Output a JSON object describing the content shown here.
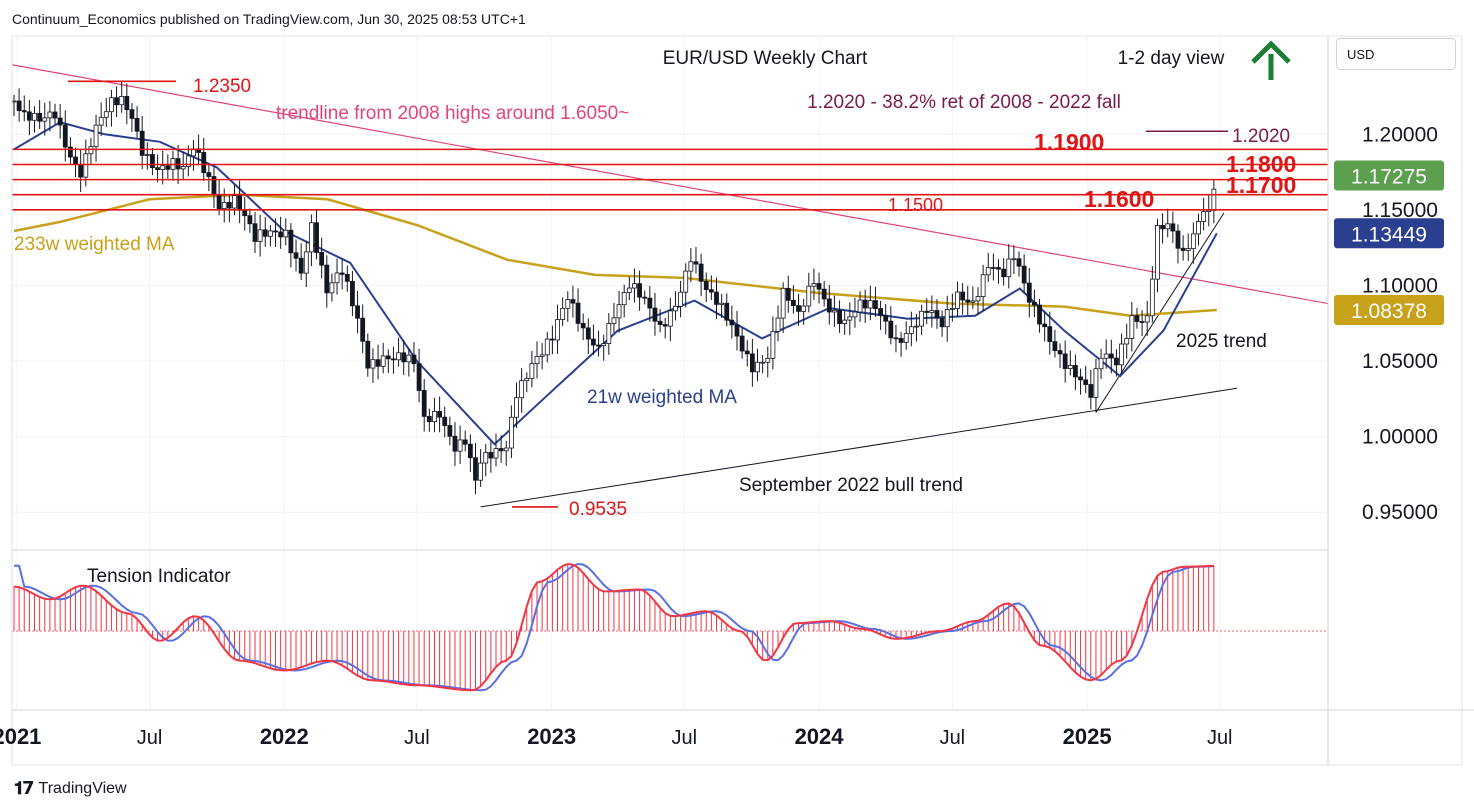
{
  "header": {
    "source": "Continuum_Economics published on TradingView.com, Jun 30, 2025 08:53 UTC+1"
  },
  "branding": {
    "name": "TradingView"
  },
  "currency_button": "USD",
  "colors": {
    "up": "#ffffff",
    "down": "#131722",
    "level": "#e01414",
    "trendline_2008": "#e0457b",
    "ma21": "#2a3f8f",
    "ma233": "#c8a11a",
    "tension_fill": "#f23645",
    "tension_line": "#5b6fe0",
    "current_price": "#5b9f4f",
    "arrow": "#1e7d32"
  },
  "chart_data": {
    "type": "candlestick",
    "title": "EUR/USD Weekly Chart",
    "view": "1-2 day view",
    "view_icon": "up-arrow-icon",
    "y_ticks": [
      0.95,
      1.0,
      1.05,
      1.1,
      1.15,
      1.2
    ],
    "y_tick_labels": [
      "0.95000",
      "1.00000",
      "1.05000",
      "1.10000",
      "1.15000",
      "1.20000"
    ],
    "ylim": [
      0.925,
      1.265
    ],
    "x_ticks": [
      "2021-01-01",
      "2021-07-01",
      "2022-01-01",
      "2022-07-01",
      "2023-01-01",
      "2023-07-01",
      "2024-01-01",
      "2024-07-01",
      "2025-01-01",
      "2025-07-01"
    ],
    "x_tick_labels": [
      "2021",
      "Jul",
      "2022",
      "Jul",
      "2023",
      "Jul",
      "2024",
      "Jul",
      "2025",
      "Jul"
    ],
    "price_badges": [
      {
        "value": 1.17275,
        "label": "1.17275",
        "color": "#5b9f4f"
      },
      {
        "value": 1.13449,
        "label": "1.13449",
        "color": "#2a3f8f"
      },
      {
        "value": 1.08378,
        "label": "1.08378",
        "color": "#c8a11a"
      }
    ],
    "levels": [
      {
        "value": 1.19,
        "label": "1.1900"
      },
      {
        "value": 1.18,
        "label": "1.1800"
      },
      {
        "value": 1.17,
        "label": "1.1700"
      },
      {
        "value": 1.16,
        "label": "1.1600"
      },
      {
        "value": 1.15,
        "label": "1.1500"
      }
    ],
    "annotations": {
      "high_2021": {
        "value": 1.235,
        "label": "1.2350"
      },
      "low_2022": {
        "value": 0.9535,
        "label": "0.9535"
      },
      "fib_level": {
        "value": 1.202,
        "label": "1.2020"
      },
      "fib_text": "1.2020 - 38.2% ret of 2008 - 2022 fall",
      "trendline_2008": "trendline from 2008 highs around 1.6050~",
      "ma233_label": "233w weighted MA",
      "ma21_label": "21w weighted MA",
      "bull_trend_label": "September 2022 bull trend",
      "trend_2025_label": "2025 trend"
    },
    "series": [
      {
        "name": "EUR/USD weekly close",
        "points": [
          [
            "2020-12-28",
            1.222
          ],
          [
            "2021-01-11",
            1.208
          ],
          [
            "2021-02-01",
            1.205
          ],
          [
            "2021-02-22",
            1.215
          ],
          [
            "2021-03-15",
            1.19
          ],
          [
            "2021-03-29",
            1.178
          ],
          [
            "2021-04-19",
            1.202
          ],
          [
            "2021-05-10",
            1.216
          ],
          [
            "2021-05-24",
            1.22
          ],
          [
            "2021-06-07",
            1.213
          ],
          [
            "2021-06-21",
            1.194
          ],
          [
            "2021-07-12",
            1.18
          ],
          [
            "2021-08-02",
            1.178
          ],
          [
            "2021-08-16",
            1.172
          ],
          [
            "2021-08-30",
            1.188
          ],
          [
            "2021-09-20",
            1.172
          ],
          [
            "2021-10-04",
            1.157
          ],
          [
            "2021-10-25",
            1.16
          ],
          [
            "2021-11-08",
            1.145
          ],
          [
            "2021-11-22",
            1.127
          ],
          [
            "2021-12-13",
            1.131
          ],
          [
            "2022-01-03",
            1.136
          ],
          [
            "2022-01-24",
            1.114
          ],
          [
            "2022-02-07",
            1.142
          ],
          [
            "2022-02-28",
            1.093
          ],
          [
            "2022-03-21",
            1.105
          ],
          [
            "2022-04-11",
            1.078
          ],
          [
            "2022-04-25",
            1.052
          ],
          [
            "2022-05-16",
            1.056
          ],
          [
            "2022-06-06",
            1.051
          ],
          [
            "2022-06-27",
            1.044
          ],
          [
            "2022-07-11",
            1.008
          ],
          [
            "2022-08-01",
            1.018
          ],
          [
            "2022-08-22",
            0.998
          ],
          [
            "2022-09-05",
            1.0
          ],
          [
            "2022-09-19",
            0.969
          ],
          [
            "2022-09-26",
            0.98
          ],
          [
            "2022-10-17",
            0.985
          ],
          [
            "2022-10-31",
            0.992
          ],
          [
            "2022-11-14",
            1.032
          ],
          [
            "2022-12-05",
            1.053
          ],
          [
            "2023-01-02",
            1.064
          ],
          [
            "2023-01-23",
            1.087
          ],
          [
            "2023-02-13",
            1.069
          ],
          [
            "2023-03-06",
            1.063
          ],
          [
            "2023-03-27",
            1.084
          ],
          [
            "2023-04-17",
            1.098
          ],
          [
            "2023-05-08",
            1.085
          ],
          [
            "2023-05-29",
            1.071
          ],
          [
            "2023-06-19",
            1.092
          ],
          [
            "2023-07-10",
            1.122
          ],
          [
            "2023-07-31",
            1.094
          ],
          [
            "2023-08-21",
            1.08
          ],
          [
            "2023-09-11",
            1.066
          ],
          [
            "2023-10-02",
            1.051
          ],
          [
            "2023-10-23",
            1.056
          ],
          [
            "2023-11-13",
            1.092
          ],
          [
            "2023-12-04",
            1.076
          ],
          [
            "2023-12-25",
            1.104
          ],
          [
            "2024-01-15",
            1.09
          ],
          [
            "2024-02-05",
            1.078
          ],
          [
            "2024-02-26",
            1.084
          ],
          [
            "2024-03-18",
            1.081
          ],
          [
            "2024-04-15",
            1.065
          ],
          [
            "2024-05-06",
            1.077
          ],
          [
            "2024-05-27",
            1.085
          ],
          [
            "2024-06-17",
            1.069
          ],
          [
            "2024-07-08",
            1.09
          ],
          [
            "2024-07-29",
            1.091
          ],
          [
            "2024-08-19",
            1.119
          ],
          [
            "2024-09-09",
            1.108
          ],
          [
            "2024-09-23",
            1.116
          ],
          [
            "2024-10-14",
            1.086
          ],
          [
            "2024-11-04",
            1.072
          ],
          [
            "2024-11-25",
            1.058
          ],
          [
            "2024-12-16",
            1.043
          ],
          [
            "2025-01-06",
            1.024
          ],
          [
            "2025-01-20",
            1.049
          ],
          [
            "2025-02-10",
            1.049
          ],
          [
            "2025-03-03",
            1.083
          ],
          [
            "2025-03-24",
            1.081
          ],
          [
            "2025-04-07",
            1.136
          ],
          [
            "2025-04-21",
            1.136
          ],
          [
            "2025-05-05",
            1.122
          ],
          [
            "2025-05-12",
            1.116
          ],
          [
            "2025-05-26",
            1.133
          ],
          [
            "2025-06-09",
            1.155
          ],
          [
            "2025-06-16",
            1.152
          ],
          [
            "2025-06-23",
            1.172
          ]
        ]
      },
      {
        "name": "21w weighted MA",
        "points": [
          [
            "2020-12-28",
            1.19
          ],
          [
            "2021-03-01",
            1.208
          ],
          [
            "2021-05-01",
            1.2
          ],
          [
            "2021-07-15",
            1.195
          ],
          [
            "2021-10-01",
            1.178
          ],
          [
            "2022-01-01",
            1.136
          ],
          [
            "2022-04-01",
            1.115
          ],
          [
            "2022-07-01",
            1.05
          ],
          [
            "2022-10-15",
            0.995
          ],
          [
            "2023-01-01",
            1.03
          ],
          [
            "2023-04-01",
            1.07
          ],
          [
            "2023-07-15",
            1.09
          ],
          [
            "2023-10-15",
            1.065
          ],
          [
            "2024-01-15",
            1.085
          ],
          [
            "2024-05-01",
            1.078
          ],
          [
            "2024-08-01",
            1.08
          ],
          [
            "2024-10-01",
            1.098
          ],
          [
            "2024-12-01",
            1.07
          ],
          [
            "2025-02-15",
            1.04
          ],
          [
            "2025-04-15",
            1.07
          ],
          [
            "2025-06-27",
            1.13449
          ]
        ]
      },
      {
        "name": "233w weighted MA",
        "points": [
          [
            "2020-12-28",
            1.136
          ],
          [
            "2021-03-01",
            1.142
          ],
          [
            "2021-07-01",
            1.157
          ],
          [
            "2021-11-01",
            1.16
          ],
          [
            "2022-03-01",
            1.157
          ],
          [
            "2022-07-01",
            1.14
          ],
          [
            "2022-11-01",
            1.117
          ],
          [
            "2023-03-01",
            1.107
          ],
          [
            "2023-07-01",
            1.105
          ],
          [
            "2024-01-01",
            1.095
          ],
          [
            "2024-07-01",
            1.088
          ],
          [
            "2024-12-01",
            1.086
          ],
          [
            "2025-03-01",
            1.08
          ],
          [
            "2025-06-27",
            1.08378
          ]
        ]
      },
      {
        "name": "Tension Indicator",
        "points": [
          [
            "2020-12-28",
            0.45
          ],
          [
            "2021-02-15",
            0.32
          ],
          [
            "2021-04-01",
            0.46
          ],
          [
            "2021-06-01",
            0.18
          ],
          [
            "2021-07-15",
            -0.1
          ],
          [
            "2021-09-01",
            0.15
          ],
          [
            "2021-11-01",
            -0.3
          ],
          [
            "2022-01-01",
            -0.4
          ],
          [
            "2022-03-01",
            -0.3
          ],
          [
            "2022-05-01",
            -0.5
          ],
          [
            "2022-07-01",
            -0.55
          ],
          [
            "2022-09-15",
            -0.6
          ],
          [
            "2022-10-31",
            -0.3
          ],
          [
            "2022-12-15",
            0.5
          ],
          [
            "2023-01-25",
            0.68
          ],
          [
            "2023-03-15",
            0.4
          ],
          [
            "2023-05-01",
            0.42
          ],
          [
            "2023-06-15",
            0.15
          ],
          [
            "2023-07-31",
            0.2
          ],
          [
            "2023-09-15",
            0.0
          ],
          [
            "2023-10-20",
            -0.3
          ],
          [
            "2023-12-01",
            0.08
          ],
          [
            "2024-01-15",
            0.1
          ],
          [
            "2024-03-01",
            0.02
          ],
          [
            "2024-04-15",
            -0.08
          ],
          [
            "2024-06-15",
            0.0
          ],
          [
            "2024-08-01",
            0.1
          ],
          [
            "2024-09-15",
            0.28
          ],
          [
            "2024-11-01",
            -0.15
          ],
          [
            "2025-01-06",
            -0.5
          ],
          [
            "2025-02-15",
            -0.3
          ],
          [
            "2025-04-15",
            0.6
          ],
          [
            "2025-05-12",
            0.65
          ],
          [
            "2025-06-27",
            0.66
          ]
        ]
      }
    ],
    "panel2_label": "Tension Indicator",
    "panel2_ylim": [
      -0.8,
      0.8
    ]
  }
}
